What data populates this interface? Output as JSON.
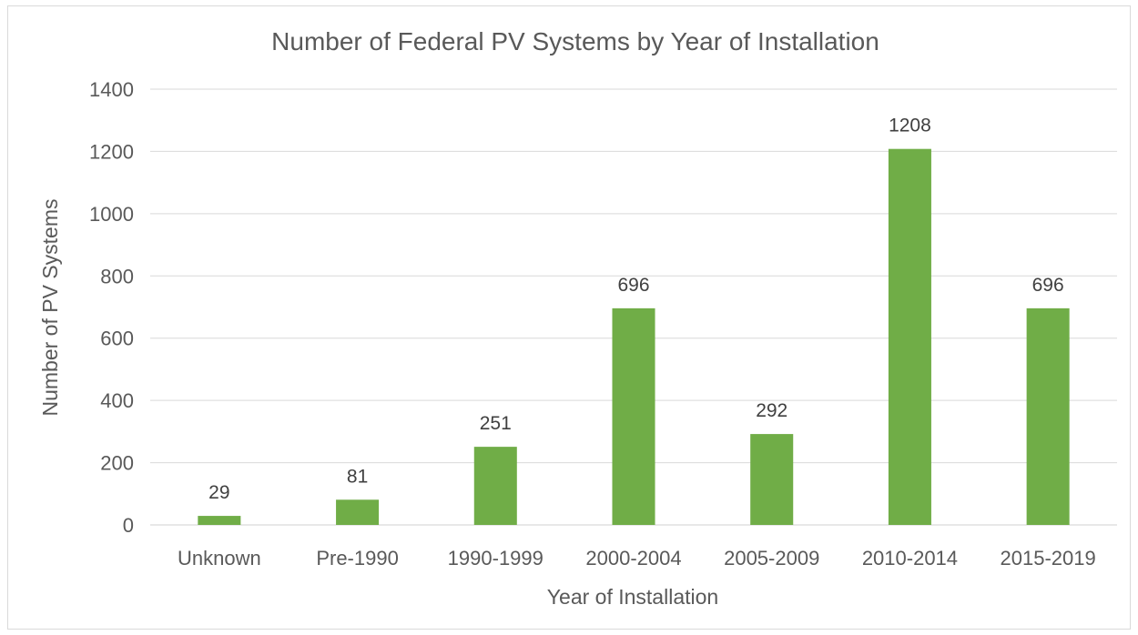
{
  "chart_data": {
    "type": "bar",
    "title": "Number of Federal PV Systems by Year of Installation",
    "xlabel": "Year of Installation",
    "ylabel": "Number of PV Systems",
    "categories": [
      "Unknown",
      "Pre-1990",
      "1990-1999",
      "2000-2004",
      "2005-2009",
      "2010-2014",
      "2015-2019"
    ],
    "values": [
      29,
      81,
      251,
      696,
      292,
      1208,
      696
    ],
    "data_labels": [
      "29",
      "81",
      "251",
      "696",
      "292",
      "1208",
      "696"
    ],
    "ylim": [
      0,
      1400
    ],
    "yticks": [
      0,
      200,
      400,
      600,
      800,
      1000,
      1200,
      1400
    ],
    "ytick_labels": [
      "0",
      "200",
      "400",
      "600",
      "800",
      "1000",
      "1200",
      "1400"
    ],
    "grid": true,
    "legend": "none",
    "bar_color": "#70ad47"
  }
}
